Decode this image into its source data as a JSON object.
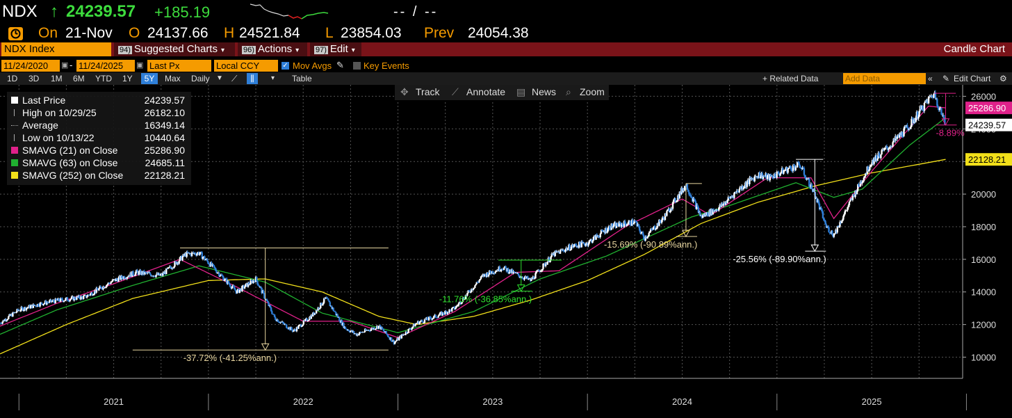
{
  "header": {
    "ticker": "NDX",
    "arrow": "↑",
    "last": "24239.57",
    "change": "+185.19",
    "right_placeholder": "-- / --",
    "on_label": "On",
    "date": "21-Nov",
    "open_label": "O",
    "open": "24137.66",
    "high_label": "H",
    "high": "24521.84",
    "low_label": "L",
    "low": "23854.03",
    "prev_label": "Prev",
    "prev": "24054.38"
  },
  "toolbar": {
    "security": "NDX Index",
    "suggested_num": "94)",
    "suggested_label": "Suggested Charts",
    "actions_num": "96)",
    "actions_label": "Actions",
    "edit_num": "97)",
    "edit_label": "Edit",
    "chart_kind": "Candle Chart"
  },
  "controls": {
    "start_date": "11/24/2020",
    "end_date": "11/24/2025",
    "price_field": "Last Px",
    "currency": "Local CCY",
    "mov_avgs": "Mov Avgs",
    "key_events": "Key Events",
    "periods": [
      "1D",
      "3D",
      "1M",
      "6M",
      "YTD",
      "1Y",
      "5Y",
      "Max"
    ],
    "active_period": "5Y",
    "frequency": "Daily",
    "table": "Table",
    "related": "+ Related Data",
    "add_data_placeholder": "Add Data",
    "edit_chart": "Edit Chart"
  },
  "chart_tools": {
    "track": "Track",
    "annotate": "Annotate",
    "news": "News",
    "zoom": "Zoom"
  },
  "legend": [
    {
      "label": "Last Price",
      "value": "24239.57",
      "color": "#ffffff"
    },
    {
      "label": "High on 10/29/25",
      "value": "26182.10",
      "color": "#aaaaaa"
    },
    {
      "label": "Average",
      "value": "16349.14",
      "color": "#aaaaaa"
    },
    {
      "label": "Low on 10/13/22",
      "value": "10440.64",
      "color": "#aaaaaa"
    },
    {
      "label": "SMAVG (21)  on Close",
      "value": "25286.90",
      "color": "#e0218a"
    },
    {
      "label": "SMAVG (63)  on Close",
      "value": "24685.11",
      "color": "#20b030"
    },
    {
      "label": "SMAVG (252)  on Close",
      "value": "22128.21",
      "color": "#f2e01a"
    }
  ],
  "colors": {
    "price": "#ffffff",
    "price_down": "#2f7fd8",
    "sma21": "#e0218a",
    "sma63": "#20b030",
    "sma252": "#f2e01a",
    "grid": "#555555",
    "header_green": "#3ddc3d",
    "orange": "#f59b00"
  },
  "chart_data": {
    "type": "line",
    "title": "NDX Index",
    "xlabel": "",
    "ylabel": "",
    "ylim": [
      8700,
      26700
    ],
    "xlim": [
      2020.9,
      2025.98
    ],
    "yticks": [
      10000,
      12000,
      14000,
      16000,
      18000,
      20000,
      22000,
      24000,
      26000
    ],
    "ytick_labels": [
      "10000",
      "12000",
      "14000",
      "16000",
      "18000",
      "20000",
      "22000",
      "24000",
      "26000"
    ],
    "year_labels": [
      "2021",
      "2022",
      "2023",
      "2024",
      "2025"
    ],
    "year_label_positions": [
      2021.5,
      2022.5,
      2023.5,
      2024.5,
      2025.5
    ],
    "grid": true,
    "legend_position": "top-left",
    "series": [
      {
        "name": "Last Price",
        "x": [
          2020.9,
          2021.0,
          2021.12,
          2021.22,
          2021.35,
          2021.5,
          2021.62,
          2021.75,
          2021.88,
          2021.95,
          2022.05,
          2022.15,
          2022.25,
          2022.35,
          2022.45,
          2022.55,
          2022.62,
          2022.72,
          2022.78,
          2022.9,
          2022.98,
          2023.1,
          2023.2,
          2023.3,
          2023.45,
          2023.55,
          2023.62,
          2023.7,
          2023.82,
          2023.92,
          2024.0,
          2024.12,
          2024.25,
          2024.3,
          2024.4,
          2024.52,
          2024.6,
          2024.7,
          2024.8,
          2024.9,
          2024.96,
          2025.05,
          2025.12,
          2025.2,
          2025.26,
          2025.3,
          2025.4,
          2025.5,
          2025.6,
          2025.7,
          2025.8,
          2025.83,
          2025.89
        ],
        "values": [
          12100,
          12900,
          13300,
          13500,
          13700,
          14700,
          15200,
          15000,
          16300,
          16400,
          15200,
          14000,
          14800,
          12400,
          11600,
          12600,
          13600,
          11800,
          11400,
          11900,
          10900,
          12100,
          12500,
          13000,
          15000,
          15500,
          15100,
          14700,
          16300,
          16800,
          17000,
          18000,
          18300,
          17300,
          18500,
          20600,
          18600,
          19200,
          20300,
          21200,
          21000,
          21500,
          21800,
          20000,
          18000,
          17500,
          19800,
          22000,
          23000,
          24200,
          25800,
          26182,
          24240
        ]
      },
      {
        "name": "SMAVG (21)",
        "x": [
          2020.9,
          2021.2,
          2021.5,
          2021.85,
          2022.15,
          2022.5,
          2022.75,
          2023.0,
          2023.3,
          2023.62,
          2023.85,
          2024.2,
          2024.5,
          2024.65,
          2024.95,
          2025.18,
          2025.3,
          2025.5,
          2025.8,
          2025.89
        ],
        "values": [
          11900,
          13300,
          14500,
          16000,
          14300,
          12200,
          12200,
          11200,
          12800,
          15200,
          15300,
          18000,
          19700,
          18700,
          21000,
          21000,
          18500,
          21400,
          25400,
          25287
        ]
      },
      {
        "name": "SMAVG (63)",
        "x": [
          2020.9,
          2021.2,
          2021.6,
          2021.95,
          2022.3,
          2022.6,
          2023.0,
          2023.4,
          2023.75,
          2024.1,
          2024.55,
          2024.75,
          2025.1,
          2025.3,
          2025.45,
          2025.7,
          2025.89
        ],
        "values": [
          11400,
          12900,
          14400,
          15600,
          14600,
          12700,
          11500,
          12800,
          14800,
          16200,
          18600,
          19300,
          20700,
          19800,
          20300,
          23000,
          24685
        ]
      },
      {
        "name": "SMAVG (252)",
        "x": [
          2020.9,
          2021.25,
          2021.6,
          2022.0,
          2022.3,
          2022.6,
          2022.9,
          2023.1,
          2023.4,
          2023.7,
          2024.0,
          2024.3,
          2024.6,
          2024.9,
          2025.2,
          2025.5,
          2025.89
        ],
        "values": [
          10200,
          12000,
          13600,
          14700,
          14800,
          14000,
          12500,
          12000,
          12500,
          13500,
          14700,
          16300,
          18200,
          19500,
          20500,
          21300,
          22128
        ]
      }
    ],
    "price_labels": [
      {
        "text": "25286.90",
        "value": 25286.9,
        "color": "#e0218a",
        "text_color": "#ffffff"
      },
      {
        "text": "24239.57",
        "value": 24239.57,
        "color": "#ffffff",
        "text_color": "#000000"
      },
      {
        "text": "22128.21",
        "value": 22128.21,
        "color": "#f2e01a",
        "text_color": "#000000"
      }
    ],
    "annotations": [
      {
        "text": "-37.72% (-41.25%ann.)",
        "color": "#e8d6a0",
        "x_peak": 2021.85,
        "x_trough": 2022.8,
        "x_end": 2022.95,
        "y_top": 16700,
        "y_bottom": 10440,
        "x_arrow": 2022.3
      },
      {
        "text": "-11.76% (-36.85%ann.)",
        "color": "#2ee02e",
        "x_peak": 2023.53,
        "x_trough": 2023.75,
        "x_end": 2023.82,
        "y_top": 15950,
        "y_bottom": 14050,
        "x_arrow": 2023.65
      },
      {
        "text": "-15.69% (-90.89%ann.)",
        "color": "#e8d6a0",
        "x_peak": 2024.52,
        "x_trough": 2024.62,
        "x_end": 2024.56,
        "y_top": 20650,
        "y_bottom": 17400,
        "x_arrow": 2024.52
      },
      {
        "text": "-25.56% (-89.90%ann.)",
        "color": "#ffffff",
        "x_peak": 2025.1,
        "x_trough": 2025.27,
        "x_end": 2025.2,
        "y_top": 22130,
        "y_bottom": 16500,
        "x_arrow": 2025.2
      },
      {
        "text": "-8.89%",
        "color": "#e0218a",
        "x_peak": 2025.83,
        "x_trough": 2025.89,
        "x_end": 2025.9,
        "y_top": 26182,
        "y_bottom": 24239,
        "x_arrow": 2025.89
      }
    ]
  }
}
